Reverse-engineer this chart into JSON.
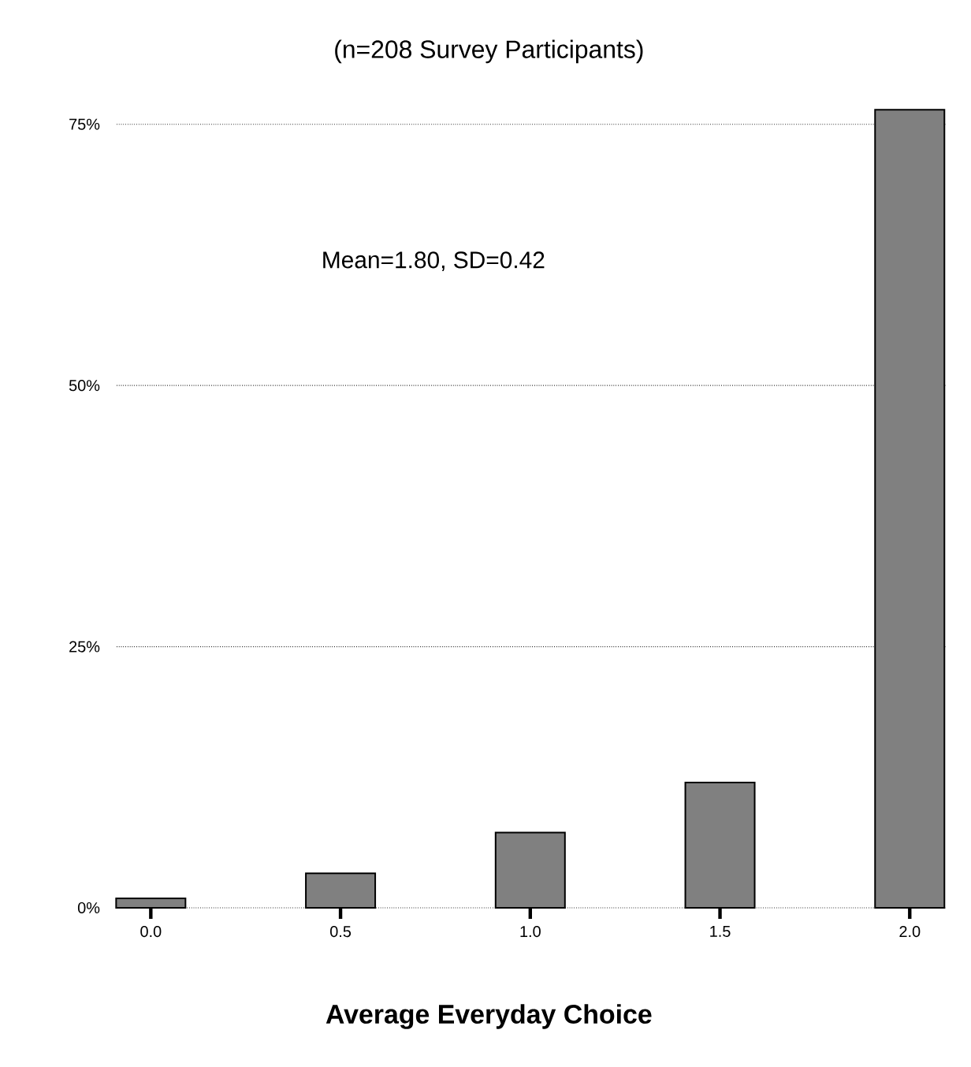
{
  "chart_data": {
    "type": "bar",
    "title": "(n=208 Survey Participants)",
    "xlabel": "Average Everyday Choice",
    "categories": [
      "0.0",
      "0.5",
      "1.0",
      "1.5",
      "2.0"
    ],
    "values": [
      0.9,
      3.3,
      7.2,
      12.0,
      76.4
    ],
    "color": "#808080",
    "yticks": [
      {
        "value": 0,
        "label": "0%"
      },
      {
        "value": 25,
        "label": "25%"
      },
      {
        "value": 50,
        "label": "50%"
      },
      {
        "value": 75,
        "label": "75%"
      }
    ],
    "ylim": [
      0,
      76.4
    ],
    "grid": "y",
    "annotations": [
      "Mean=1.80, SD=0.42"
    ]
  }
}
